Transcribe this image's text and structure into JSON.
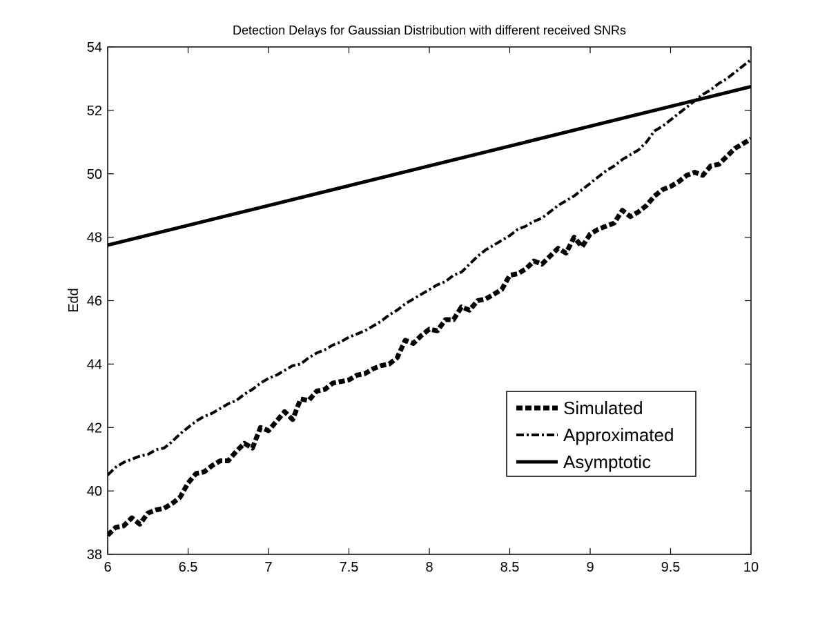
{
  "chart_data": {
    "type": "line",
    "title": "Detection Delays for Gaussian Distribution with different received SNRs",
    "xlabel": "",
    "ylabel": "Edd",
    "xlim": [
      6,
      10
    ],
    "ylim": [
      38,
      54
    ],
    "xticks": [
      6,
      6.5,
      7,
      7.5,
      8,
      8.5,
      9,
      9.5,
      10
    ],
    "xtick_labels": [
      "6",
      "6.5",
      "7",
      "7.5",
      "8",
      "8.5",
      "9",
      "9.5",
      "10"
    ],
    "yticks": [
      38,
      40,
      42,
      44,
      46,
      48,
      50,
      52,
      54
    ],
    "ytick_labels": [
      "38",
      "40",
      "42",
      "44",
      "46",
      "48",
      "50",
      "52",
      "54"
    ],
    "grid": false,
    "legend_position": "lower-right",
    "series": [
      {
        "name": "Simulated",
        "style": "dashed",
        "color": "#000000",
        "x": [
          6.0,
          6.05,
          6.1,
          6.15,
          6.2,
          6.25,
          6.3,
          6.35,
          6.4,
          6.45,
          6.5,
          6.55,
          6.6,
          6.65,
          6.7,
          6.75,
          6.8,
          6.85,
          6.9,
          6.95,
          7.0,
          7.05,
          7.1,
          7.15,
          7.2,
          7.25,
          7.3,
          7.35,
          7.4,
          7.45,
          7.5,
          7.55,
          7.6,
          7.65,
          7.7,
          7.75,
          7.8,
          7.85,
          7.9,
          7.95,
          8.0,
          8.05,
          8.1,
          8.15,
          8.2,
          8.25,
          8.3,
          8.35,
          8.4,
          8.45,
          8.5,
          8.55,
          8.6,
          8.65,
          8.7,
          8.75,
          8.8,
          8.85,
          8.9,
          8.95,
          9.0,
          9.05,
          9.1,
          9.15,
          9.2,
          9.25,
          9.3,
          9.35,
          9.4,
          9.45,
          9.5,
          9.55,
          9.6,
          9.65,
          9.7,
          9.75,
          9.8,
          9.85,
          9.9,
          9.95,
          10.0
        ],
        "values": [
          38.6,
          38.85,
          38.9,
          39.15,
          38.95,
          39.3,
          39.4,
          39.45,
          39.6,
          39.8,
          40.25,
          40.55,
          40.6,
          40.8,
          40.95,
          40.95,
          41.25,
          41.5,
          41.35,
          42.0,
          41.9,
          42.2,
          42.5,
          42.25,
          42.9,
          42.85,
          43.15,
          43.2,
          43.4,
          43.45,
          43.5,
          43.65,
          43.7,
          43.85,
          43.95,
          44.0,
          44.2,
          44.75,
          44.65,
          44.9,
          45.1,
          45.05,
          45.4,
          45.4,
          45.8,
          45.7,
          46.0,
          46.05,
          46.2,
          46.35,
          46.8,
          46.85,
          47.0,
          47.25,
          47.15,
          47.4,
          47.65,
          47.5,
          48.0,
          47.7,
          48.1,
          48.25,
          48.35,
          48.45,
          48.85,
          48.65,
          48.8,
          49.0,
          49.3,
          49.5,
          49.6,
          49.75,
          49.95,
          50.05,
          49.95,
          50.25,
          50.3,
          50.55,
          50.8,
          50.95,
          51.1
        ]
      },
      {
        "name": "Approximated",
        "style": "dashdot",
        "color": "#000000",
        "x": [
          6.0,
          6.05,
          6.1,
          6.15,
          6.2,
          6.25,
          6.3,
          6.35,
          6.4,
          6.45,
          6.5,
          6.55,
          6.6,
          6.65,
          6.7,
          6.75,
          6.8,
          6.85,
          6.9,
          6.95,
          7.0,
          7.05,
          7.1,
          7.15,
          7.2,
          7.25,
          7.3,
          7.35,
          7.4,
          7.45,
          7.5,
          7.55,
          7.6,
          7.65,
          7.7,
          7.75,
          7.8,
          7.85,
          7.9,
          7.95,
          8.0,
          8.05,
          8.1,
          8.15,
          8.2,
          8.25,
          8.3,
          8.35,
          8.4,
          8.45,
          8.5,
          8.55,
          8.6,
          8.65,
          8.7,
          8.75,
          8.8,
          8.85,
          8.9,
          8.95,
          9.0,
          9.05,
          9.1,
          9.15,
          9.2,
          9.25,
          9.3,
          9.35,
          9.4,
          9.45,
          9.5,
          9.55,
          9.6,
          9.65,
          9.7,
          9.75,
          9.8,
          9.85,
          9.9,
          9.95,
          10.0
        ],
        "values": [
          40.5,
          40.75,
          40.9,
          41.0,
          41.1,
          41.15,
          41.3,
          41.35,
          41.55,
          41.8,
          42.0,
          42.2,
          42.35,
          42.45,
          42.6,
          42.75,
          42.85,
          43.05,
          43.2,
          43.4,
          43.55,
          43.65,
          43.8,
          43.95,
          44.0,
          44.2,
          44.35,
          44.45,
          44.6,
          44.7,
          44.85,
          44.95,
          45.05,
          45.2,
          45.35,
          45.55,
          45.7,
          45.9,
          46.05,
          46.2,
          46.35,
          46.5,
          46.6,
          46.8,
          46.9,
          47.15,
          47.4,
          47.6,
          47.75,
          47.9,
          48.05,
          48.25,
          48.35,
          48.5,
          48.6,
          48.8,
          49.0,
          49.15,
          49.3,
          49.5,
          49.7,
          49.9,
          50.1,
          50.25,
          50.45,
          50.6,
          50.75,
          51.0,
          51.35,
          51.5,
          51.7,
          51.9,
          52.1,
          52.3,
          52.5,
          52.65,
          52.85,
          53.0,
          53.2,
          53.4,
          53.6
        ]
      },
      {
        "name": "Asymptotic",
        "style": "solid",
        "color": "#000000",
        "x": [
          6,
          10
        ],
        "values": [
          47.75,
          52.75
        ]
      }
    ]
  }
}
